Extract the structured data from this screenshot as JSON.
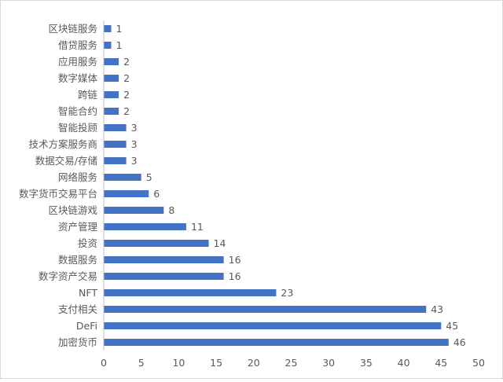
{
  "chart_data": {
    "type": "bar",
    "orientation": "horizontal",
    "categories": [
      "区块链服务",
      "借贷服务",
      "应用服务",
      "数字媒体",
      "跨链",
      "智能合约",
      "智能投顾",
      "技术方案服务商",
      "数据交易/存储",
      "网络服务",
      "数字货币交易平台",
      "区块链游戏",
      "资产管理",
      "投资",
      "数据服务",
      "数字资产交易",
      "NFT",
      "支付相关",
      "DeFi",
      "加密货币"
    ],
    "values": [
      1,
      1,
      2,
      2,
      2,
      2,
      3,
      3,
      3,
      5,
      6,
      8,
      11,
      14,
      16,
      16,
      23,
      43,
      45,
      46
    ],
    "xlim": [
      0,
      50
    ],
    "xticks": [
      0,
      5,
      10,
      15,
      20,
      25,
      30,
      35,
      40,
      45,
      50
    ],
    "grid": false,
    "data_labels": true,
    "bar_color": "#4472c4",
    "title": "",
    "xlabel": "",
    "ylabel": ""
  }
}
